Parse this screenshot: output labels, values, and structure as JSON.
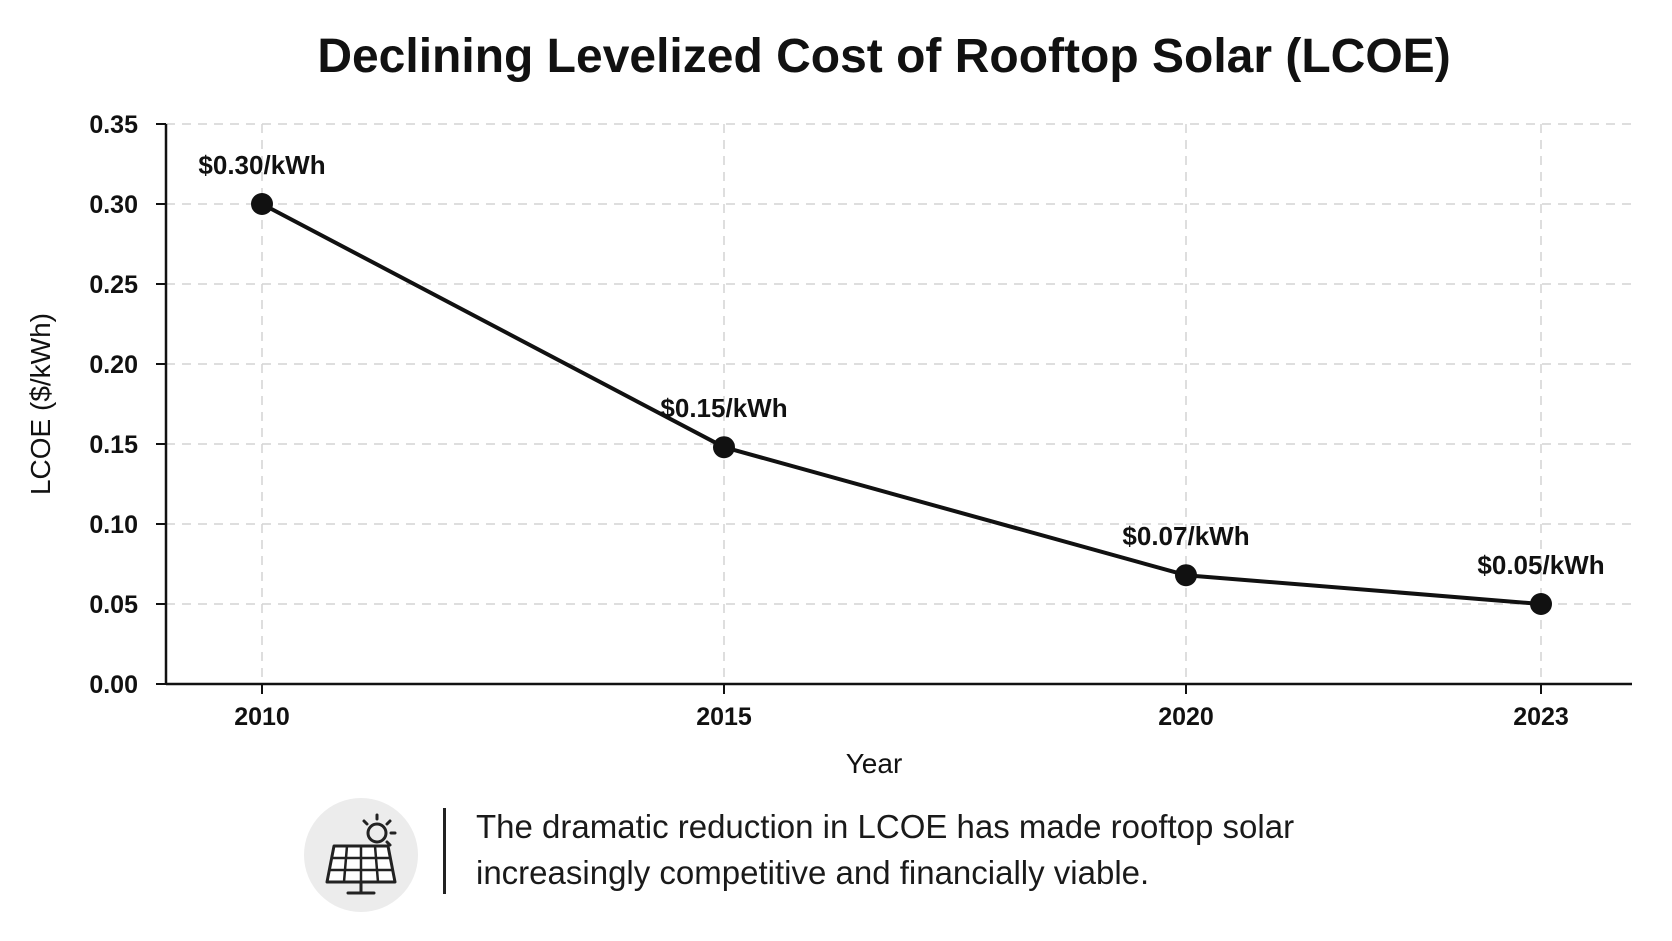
{
  "chart_data": {
    "type": "line",
    "title": "Declining Levelized Cost of Rooftop Solar (LCOE)",
    "xlabel": "Year",
    "ylabel": "LCOE ($/kWh)",
    "categories": [
      "2010",
      "2015",
      "2020",
      "2023"
    ],
    "x": [
      2010,
      2015,
      2020,
      2023
    ],
    "y_ticks": [
      "0.00",
      "0.05",
      "0.10",
      "0.15",
      "0.20",
      "0.25",
      "0.30",
      "0.35"
    ],
    "ylim": [
      0,
      0.35
    ],
    "grid": true,
    "series": [
      {
        "values": [
          0.3,
          0.148,
          0.068,
          0.05
        ],
        "data_labels": [
          "$0.30/kWh",
          "$0.15/kWh",
          "$0.07/kWh",
          "$0.05/kWh"
        ],
        "color": "#111111"
      }
    ]
  },
  "note": {
    "icon": "solar-panel-icon",
    "lines": [
      "The dramatic reduction in LCOE has made rooftop solar",
      "increasingly competitive and financially viable."
    ]
  }
}
